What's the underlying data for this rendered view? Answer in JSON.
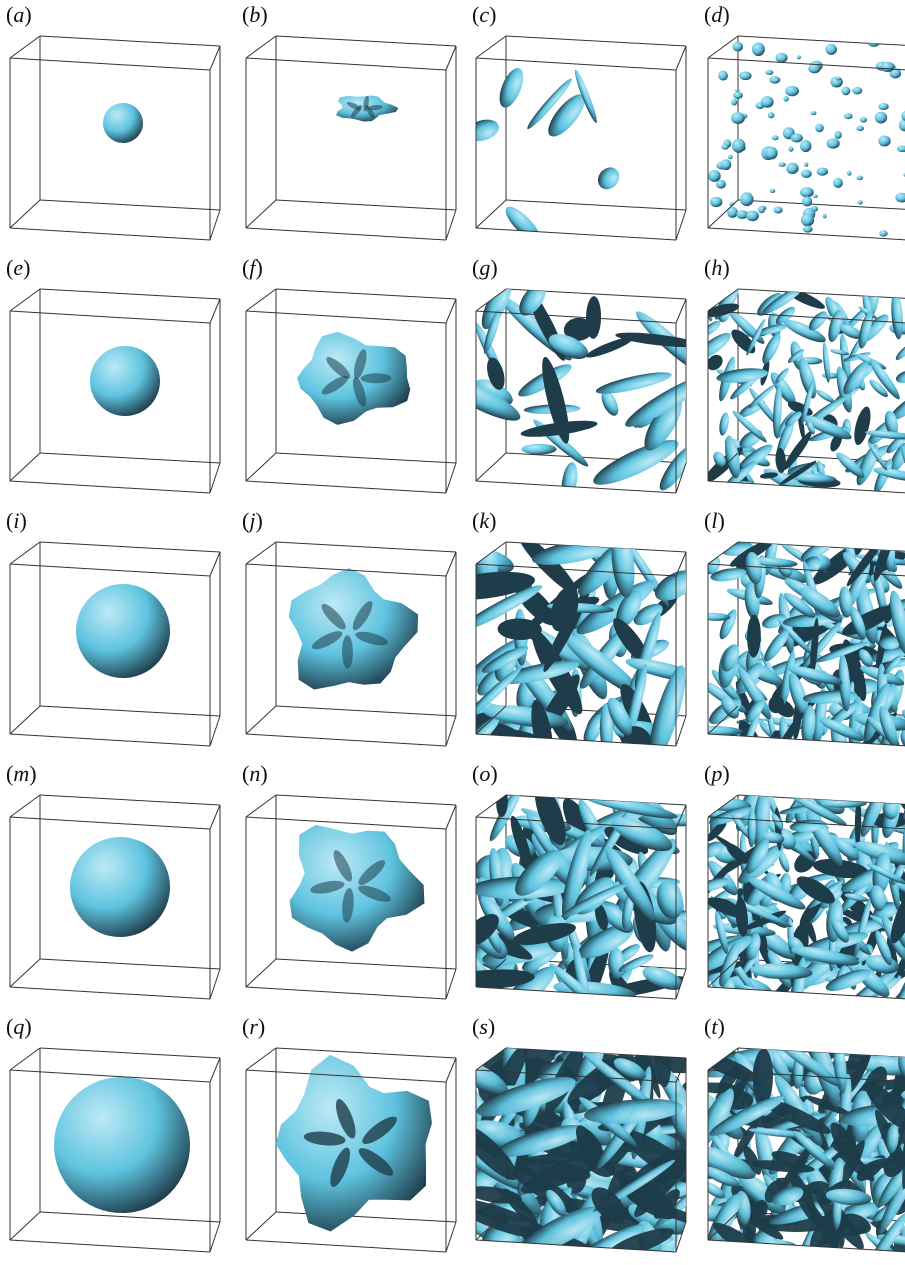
{
  "figure": {
    "panels": [
      {
        "label": "a"
      },
      {
        "label": "b"
      },
      {
        "label": "c"
      },
      {
        "label": "d"
      },
      {
        "label": "e"
      },
      {
        "label": "f"
      },
      {
        "label": "g"
      },
      {
        "label": "h"
      },
      {
        "label": "i"
      },
      {
        "label": "j"
      },
      {
        "label": "k"
      },
      {
        "label": "l"
      },
      {
        "label": "m"
      },
      {
        "label": "n"
      },
      {
        "label": "o"
      },
      {
        "label": "p"
      },
      {
        "label": "q"
      },
      {
        "label": "r"
      },
      {
        "label": "s"
      },
      {
        "label": "t"
      }
    ]
  },
  "colors": {
    "surface": "#5ec3df",
    "surface_light": "#bdeaf6",
    "surface_dark": "#1e3c4a",
    "box_edge": "#333333"
  }
}
